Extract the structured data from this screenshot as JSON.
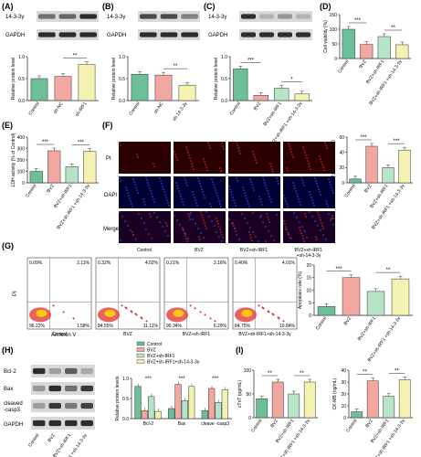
{
  "colors": {
    "green": "#6cbf97",
    "pink": "#f2a7a0",
    "yellow": "#f3f2b3",
    "lightgreen": "#b7e3c6",
    "bar_stroke": "#333333"
  },
  "panels": {
    "A": {
      "letter": "(A)",
      "blot_label": "14-3-3γ",
      "ctrl_label": "GAPDH"
    },
    "B": {
      "letter": "(B)",
      "blot_label": "14-3-3γ",
      "ctrl_label": "GAPDH"
    },
    "C": {
      "letter": "(C)",
      "blot_label": "14-3-3γ",
      "ctrl_label": "GAPDH"
    },
    "D": {
      "letter": "(D)"
    },
    "E": {
      "letter": "(E)"
    },
    "F": {
      "letter": "(F)",
      "rows": [
        "PI",
        "DAPI",
        "Merge"
      ],
      "cols": [
        "Control",
        "BVZ",
        "BVZ+sh-IRF1",
        "BVZ+sh-IRF1\n+sh-14-3-3γ"
      ]
    },
    "G": {
      "letter": "(G)",
      "ylab": "PI",
      "xlab": "Annexin V",
      "quads": [
        [
          "0.09%",
          "2.11%",
          "96.22%",
          "1.58%"
        ],
        [
          "0.32%",
          "4.02%",
          "84.55%",
          "11.11%"
        ],
        [
          "0.21%",
          "3.16%",
          "90.34%",
          "6.29%"
        ],
        [
          "0.40%",
          "4.01%",
          "84.75%",
          "10.84%"
        ]
      ]
    },
    "H": {
      "letter": "(H)",
      "blot_labels": [
        "Bcl-2",
        "Bax",
        "cleaved -casp3",
        "GAPDH"
      ],
      "lanes": [
        "Control",
        "BVZ",
        "BVZ+sh-IRF1",
        "BVZ+sh-IRF1 +sh-14-3-3γ"
      ],
      "legend": [
        "Control",
        "BVZ",
        "BVZ+sh-IRF1",
        "BVZ+sh-IRF1+sh-14-3-3γ"
      ]
    },
    "I": {
      "letter": "(I)"
    }
  },
  "chart_data": [
    {
      "id": "A",
      "type": "bar",
      "categories": [
        "Control",
        "sh-NC",
        "sh-IRF1"
      ],
      "values": [
        0.5,
        0.55,
        0.82
      ],
      "ylabel": "Relative protein level",
      "ylim": [
        0,
        1.0
      ],
      "yticks": [
        "0.0",
        "0.5",
        "1.0"
      ],
      "colors": [
        "#6cbf97",
        "#f2a7a0",
        "#f3f2b3"
      ],
      "sig": [
        {
          "from": 1,
          "to": 2,
          "label": "**"
        }
      ]
    },
    {
      "id": "B",
      "type": "bar",
      "categories": [
        "Control",
        "sh-NC",
        "sh-14-3-3γ"
      ],
      "values": [
        0.6,
        0.58,
        0.35
      ],
      "ylabel": "Relative protein level",
      "ylim": [
        0,
        1.0
      ],
      "yticks": [
        "0.0",
        "0.5",
        "1.0"
      ],
      "colors": [
        "#6cbf97",
        "#f2a7a0",
        "#f3f2b3"
      ],
      "sig": [
        {
          "from": 1,
          "to": 2,
          "label": "**"
        }
      ]
    },
    {
      "id": "C",
      "type": "bar",
      "categories": [
        "Control",
        "BVZ",
        "BVZ+sh-IRF1",
        "BVZ+sh-IRF1 +sh-14-3-3γ"
      ],
      "values": [
        0.72,
        0.12,
        0.28,
        0.15
      ],
      "ylabel": "Relative protein level",
      "ylim": [
        0,
        1.0
      ],
      "yticks": [
        "0.0",
        "0.5",
        "1.0"
      ],
      "colors": [
        "#6cbf97",
        "#f2a7a0",
        "#b7e3c6",
        "#f3f2b3"
      ],
      "sig": [
        {
          "from": 0,
          "to": 1,
          "label": "***"
        },
        {
          "from": 2,
          "to": 3,
          "label": "*"
        }
      ]
    },
    {
      "id": "D",
      "type": "bar",
      "categories": [
        "Control",
        "BVZ",
        "BVZ+sh-IRF1",
        "BVZ+sh-IRF1 +sh-14-3-3γ"
      ],
      "values": [
        100,
        48,
        75,
        47
      ],
      "ylabel": "Cell viability (%)",
      "ylim": [
        0,
        150
      ],
      "yticks": [
        "0",
        "50",
        "100",
        "150"
      ],
      "colors": [
        "#6cbf97",
        "#f2a7a0",
        "#b7e3c6",
        "#f3f2b3"
      ],
      "sig": [
        {
          "from": 0,
          "to": 1,
          "label": "***"
        },
        {
          "from": 2,
          "to": 3,
          "label": "**"
        }
      ]
    },
    {
      "id": "E",
      "type": "bar",
      "categories": [
        "Control",
        "BVZ",
        "BVZ+sh-IRF1",
        "BVZ+sh-IRF1 +sh-14-3-3γ"
      ],
      "values": [
        100,
        280,
        140,
        275
      ],
      "ylabel": "LDH activity (% of Control)",
      "ylim": [
        0,
        400
      ],
      "yticks": [
        "0",
        "100",
        "200",
        "300",
        "400"
      ],
      "colors": [
        "#6cbf97",
        "#f2a7a0",
        "#b7e3c6",
        "#f3f2b3"
      ],
      "sig": [
        {
          "from": 0,
          "to": 1,
          "label": "***"
        },
        {
          "from": 2,
          "to": 3,
          "label": "***"
        }
      ]
    },
    {
      "id": "F",
      "type": "bar",
      "categories": [
        "Control",
        "BVZ",
        "BVZ+sh-IRF1",
        "BVZ+sh-IRF1 +sh-14-3-3γ"
      ],
      "values": [
        5,
        48,
        20,
        43
      ],
      "ylabel": "PI positive cells (%)",
      "ylim": [
        0,
        60
      ],
      "yticks": [
        "0",
        "20",
        "40",
        "60"
      ],
      "colors": [
        "#6cbf97",
        "#f2a7a0",
        "#b7e3c6",
        "#f3f2b3"
      ],
      "sig": [
        {
          "from": 0,
          "to": 1,
          "label": "***"
        },
        {
          "from": 2,
          "to": 3,
          "label": "***"
        }
      ]
    },
    {
      "id": "G",
      "type": "bar",
      "categories": [
        "Control",
        "BVZ",
        "BVZ+sh-IRF1",
        "BVZ+sh-IRF1 +sh-14-3-3γ"
      ],
      "values": [
        3.5,
        15,
        9.5,
        14.5
      ],
      "ylabel": "Apoptosis rate (%)",
      "ylim": [
        0,
        20
      ],
      "yticks": [
        "0",
        "5",
        "10",
        "15",
        "20"
      ],
      "colors": [
        "#6cbf97",
        "#f2a7a0",
        "#b7e3c6",
        "#f3f2b3"
      ],
      "sig": [
        {
          "from": 0,
          "to": 1,
          "label": "***"
        },
        {
          "from": 2,
          "to": 3,
          "label": "**"
        }
      ]
    },
    {
      "id": "H",
      "type": "bar",
      "categories": [
        "Bcl-2",
        "Bax",
        "cleave -casp3"
      ],
      "series": [
        {
          "name": "Control",
          "values": [
            0.8,
            0.25,
            0.2
          ]
        },
        {
          "name": "BVZ",
          "values": [
            0.2,
            0.85,
            0.75
          ]
        },
        {
          "name": "BVZ+sh-IRF1",
          "values": [
            0.55,
            0.45,
            0.4
          ]
        },
        {
          "name": "BVZ+sh-IRF1+sh-14-3-3γ",
          "values": [
            0.18,
            0.8,
            0.72
          ]
        }
      ],
      "ylabel": "Relative protein levels",
      "ylim": [
        0,
        1.0
      ],
      "yticks": [
        "0.0",
        "0.5",
        "1.0"
      ],
      "colors": [
        "#6cbf97",
        "#f2a7a0",
        "#b7e3c6",
        "#f3f2b3"
      ]
    },
    {
      "id": "I1",
      "type": "bar",
      "categories": [
        "Control",
        "BVZ",
        "BVZ+sh-IRF1",
        "BVZ+sh-IRF1 +sh-14-3-3γ"
      ],
      "values": [
        40,
        75,
        50,
        75
      ],
      "ylabel": "cTnT (pg/mL)",
      "ylim": [
        0,
        100
      ],
      "yticks": [
        "0",
        "50",
        "100"
      ],
      "colors": [
        "#6cbf97",
        "#f2a7a0",
        "#b7e3c6",
        "#f3f2b3"
      ],
      "sig": [
        {
          "from": 0,
          "to": 1,
          "label": "**"
        },
        {
          "from": 2,
          "to": 3,
          "label": "**"
        }
      ]
    },
    {
      "id": "I2",
      "type": "bar",
      "categories": [
        "Control",
        "BVZ",
        "BVZ+sh-IRF1",
        "BVZ+sh-IRF1 +sh-14-3-3γ"
      ],
      "values": [
        5,
        31,
        18,
        32
      ],
      "ylabel": "CK-MB (ng/mL)",
      "ylim": [
        0,
        40
      ],
      "yticks": [
        "0",
        "10",
        "20",
        "30",
        "40"
      ],
      "colors": [
        "#6cbf97",
        "#f2a7a0",
        "#b7e3c6",
        "#f3f2b3"
      ],
      "sig": [
        {
          "from": 0,
          "to": 1,
          "label": "**"
        },
        {
          "from": 2,
          "to": 3,
          "label": "**"
        }
      ]
    }
  ]
}
